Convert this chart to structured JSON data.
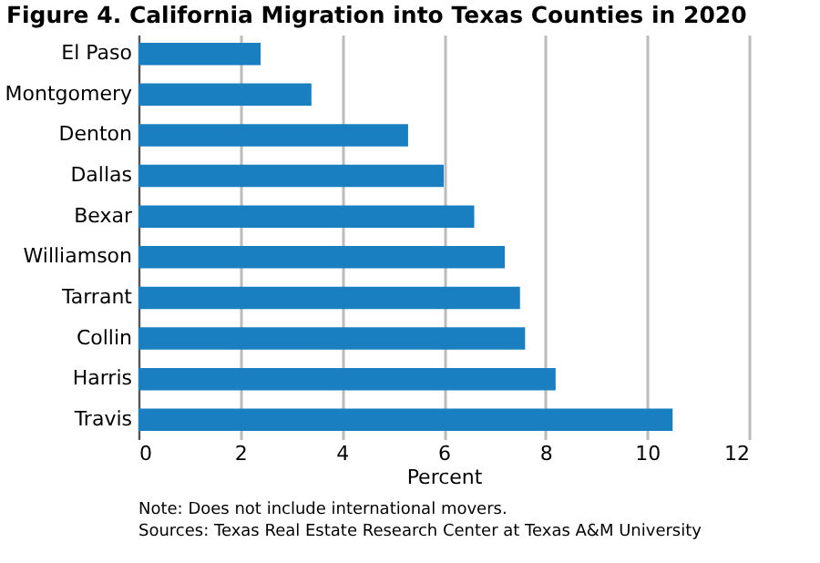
{
  "chart_data": {
    "type": "bar",
    "orientation": "horizontal",
    "title": "Figure 4. California Migration into Texas Counties in 2020",
    "categories": [
      "El Paso",
      "Montgomery",
      "Denton",
      "Dallas",
      "Bexar",
      "Williamson",
      "Tarrant",
      "Collin",
      "Harris",
      "Travis"
    ],
    "values": [
      2.4,
      3.4,
      5.3,
      6.0,
      6.6,
      7.2,
      7.5,
      7.6,
      8.2,
      10.5
    ],
    "color": "#1a7fc1",
    "xlabel": "Percent",
    "xlim": [
      0,
      12
    ],
    "xticks": [
      0,
      2,
      4,
      6,
      8,
      10,
      12
    ],
    "grid": "x",
    "annotations": [
      "Note: Does not include international movers.",
      "Sources: Texas Real Estate Research Center at Texas A&M University"
    ]
  }
}
